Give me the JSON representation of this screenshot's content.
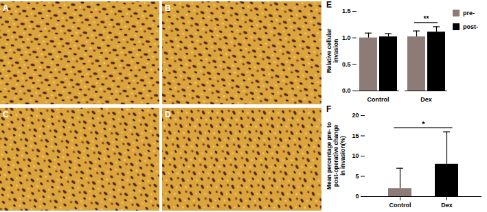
{
  "panels": [
    {
      "panel": "A"
    },
    {
      "panel": "B"
    },
    {
      "panel": "C"
    },
    {
      "panel": "D"
    }
  ],
  "chart_data": [
    {
      "panel": "E",
      "type": "bar",
      "categories": [
        "Control",
        "Dex"
      ],
      "series": [
        {
          "name": "pre-",
          "color": "#8c7b76",
          "values": [
            1.0,
            1.02
          ],
          "errors": [
            0.09,
            0.11
          ]
        },
        {
          "name": "post-",
          "color": "#000000",
          "values": [
            1.02,
            1.11
          ],
          "errors": [
            0.06,
            0.1
          ]
        }
      ],
      "y_label": "Relative cellular invasion",
      "ylim": [
        0,
        1.5
      ],
      "yticks": [
        {
          "value": 0,
          "label": "0.0"
        },
        {
          "value": 0.5,
          "label": "0.5"
        },
        {
          "value": 1,
          "label": "1.0"
        },
        {
          "value": 1.5,
          "label": "1.5"
        }
      ],
      "legend": "right",
      "annotations": [
        {
          "text": "**",
          "category": "Dex"
        }
      ]
    },
    {
      "panel": "F",
      "type": "bar",
      "categories": [
        "Control",
        "Dex"
      ],
      "values": [
        2,
        8
      ],
      "errors": [
        5,
        8
      ],
      "colors": [
        "#8c7b76",
        "#000000"
      ],
      "y_label": "Mean percentage pre- to post-operative change in invasion(%)",
      "ylim": [
        0,
        20
      ],
      "yticks": [
        0,
        5,
        10,
        15,
        20
      ],
      "annotations": [
        {
          "text": "*",
          "categories": [
            "Control",
            "Dex"
          ]
        }
      ]
    }
  ]
}
